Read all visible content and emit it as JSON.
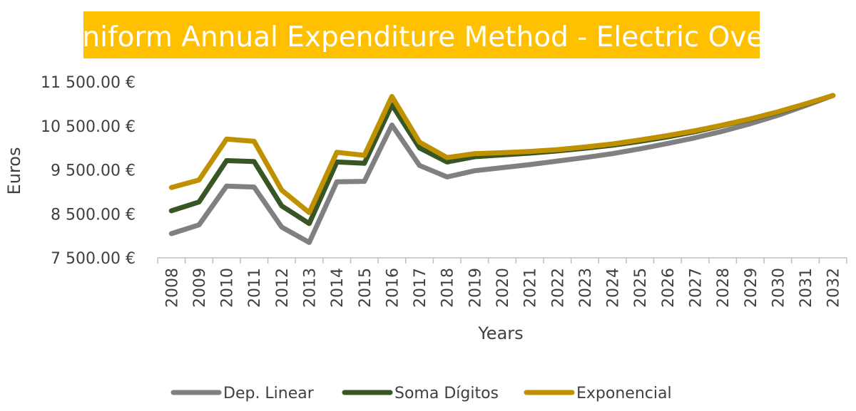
{
  "chart_data": {
    "type": "line",
    "title": "Uniform Annual Expenditure Method - Electric Oven",
    "xlabel": "Years",
    "ylabel": "Euros",
    "categories": [
      "2008",
      "2009",
      "2010",
      "2011",
      "2012",
      "2013",
      "2014",
      "2015",
      "2016",
      "2017",
      "2018",
      "2019",
      "2020",
      "2021",
      "2022",
      "2023",
      "2024",
      "2025",
      "2026",
      "2027",
      "2028",
      "2029",
      "2030",
      "2031",
      "2032"
    ],
    "y_ticks": [
      "7 500.00 €",
      "8 500.00 €",
      "9 500.00 €",
      "10 500.00 €",
      "11 500.00 €"
    ],
    "y_tick_values": [
      7500,
      8500,
      9500,
      10500,
      11500
    ],
    "ylim": [
      7500,
      11500
    ],
    "grid": false,
    "legend_position": "bottom",
    "series": [
      {
        "name": "Dep. Linear",
        "color": "#808080",
        "values": [
          8050,
          8250,
          9130,
          9110,
          8200,
          7850,
          9230,
          9240,
          10520,
          9600,
          9340,
          9480,
          9550,
          9620,
          9700,
          9780,
          9870,
          9980,
          10100,
          10230,
          10380,
          10550,
          10740,
          10960,
          11190
        ]
      },
      {
        "name": "Soma Dígitos",
        "color": "#375623",
        "values": [
          8570,
          8770,
          9710,
          9690,
          8680,
          8280,
          9680,
          9650,
          10980,
          10000,
          9680,
          9800,
          9840,
          9880,
          9930,
          9990,
          10060,
          10150,
          10250,
          10370,
          10510,
          10650,
          10810,
          10990,
          11190
        ]
      },
      {
        "name": "Exponencial",
        "color": "#BF9000",
        "values": [
          9100,
          9270,
          10200,
          10150,
          9040,
          8530,
          9900,
          9830,
          11170,
          10130,
          9780,
          9870,
          9890,
          9920,
          9960,
          10020,
          10090,
          10180,
          10280,
          10390,
          10520,
          10660,
          10820,
          11000,
          11190
        ]
      }
    ]
  }
}
